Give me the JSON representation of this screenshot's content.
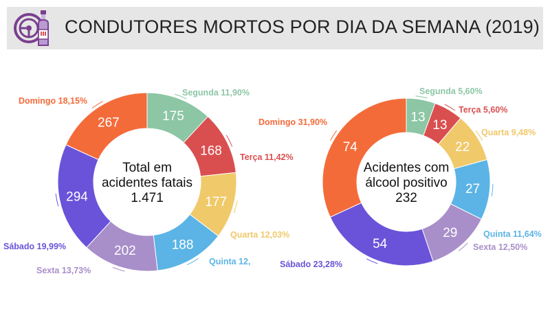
{
  "header": {
    "title": "CONDUTORES MORTOS POR DIA DA SEMANA (2019)",
    "icon": "steering-wheel-bottle-icon"
  },
  "colors": {
    "segunda": "#8cc6a5",
    "terca": "#d94f50",
    "quarta": "#f0c96a",
    "quinta": "#5bb4e5",
    "sexta": "#a88fc9",
    "sabado": "#6a53d8",
    "domingo": "#f46b3a"
  },
  "chart_data": [
    {
      "type": "pie",
      "variant": "donut",
      "center_text": [
        "Total em",
        "acidentes fatais",
        "1.471"
      ],
      "categories": [
        "Segunda",
        "Terça",
        "Quarta",
        "Quinta",
        "Sexta",
        "Sábado",
        "Domingo"
      ],
      "values": [
        175,
        168,
        177,
        188,
        202,
        294,
        267
      ],
      "labels": [
        "Segunda 11,90%",
        "Terça 11,42%",
        "Quarta 12,03%",
        "Quinta 12,",
        "Sexta 13,73%",
        "Sábado 19,99%",
        "Domingo 18,15%"
      ]
    },
    {
      "type": "pie",
      "variant": "donut",
      "center_text": [
        "Acidentes com",
        "álcool positivo",
        "232"
      ],
      "categories": [
        "Segunda",
        "Terça",
        "Quarta",
        "Quinta",
        "Sexta",
        "Sábado",
        "Domingo"
      ],
      "values": [
        13,
        13,
        22,
        27,
        29,
        54,
        74
      ],
      "labels": [
        "Segunda 5,60%",
        "Terça 5,60%",
        "Quarta 9,48%",
        "Quinta 11,64%",
        "Sexta 12,50%",
        "Sábado 23,28%",
        "Domingo 31,90%"
      ]
    }
  ]
}
